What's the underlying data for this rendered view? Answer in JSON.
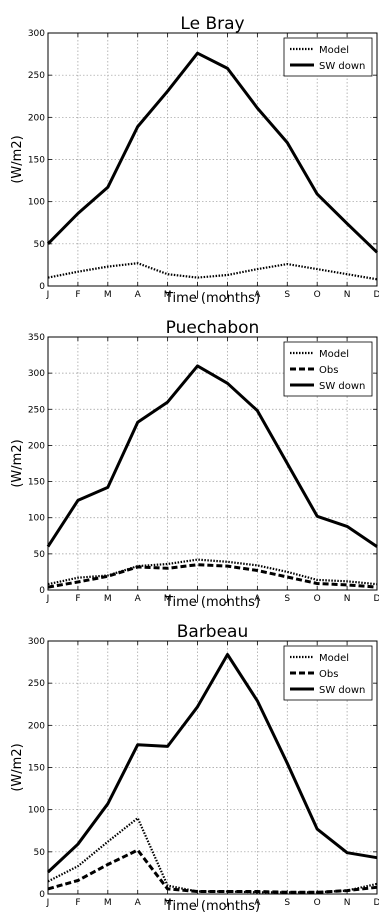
{
  "chart_data": [
    {
      "type": "line",
      "title": "Le Bray",
      "xlabel": "Time (months)",
      "ylabel": "(W/m2)",
      "categories": [
        "J",
        "F",
        "M",
        "A",
        "M",
        "J",
        "J",
        "A",
        "S",
        "O",
        "N",
        "D"
      ],
      "yticks": [
        "0",
        "50",
        "100",
        "150",
        "200",
        "250",
        "300"
      ],
      "ylim": [
        0,
        300
      ],
      "grid": true,
      "legend": "top-right",
      "series": [
        {
          "name": "Model",
          "style": "dotted",
          "values": [
            10,
            17,
            23,
            27,
            14,
            10,
            13,
            20,
            26,
            20,
            14,
            8
          ]
        },
        {
          "name": "SW down",
          "style": "solid",
          "values": [
            50,
            86,
            117,
            189,
            231,
            276,
            258,
            211,
            170,
            109,
            74,
            40
          ]
        }
      ]
    },
    {
      "type": "line",
      "title": "Puechabon",
      "xlabel": "Time (months)",
      "ylabel": "(W/m2)",
      "categories": [
        "J",
        "F",
        "M",
        "A",
        "M",
        "J",
        "J",
        "A",
        "S",
        "O",
        "N",
        "D"
      ],
      "yticks": [
        "0",
        "50",
        "100",
        "150",
        "200",
        "250",
        "300",
        "350"
      ],
      "ylim": [
        0,
        350
      ],
      "grid": true,
      "legend": "top-right",
      "series": [
        {
          "name": "Model",
          "style": "dotted",
          "values": [
            8,
            17,
            20,
            33,
            36,
            42,
            39,
            34,
            25,
            14,
            12,
            8
          ]
        },
        {
          "name": "Obs",
          "style": "dashed",
          "values": [
            4,
            11,
            19,
            32,
            30,
            35,
            33,
            27,
            18,
            9,
            7,
            4
          ]
        },
        {
          "name": "SW down",
          "style": "solid",
          "values": [
            60,
            124,
            142,
            232,
            260,
            310,
            286,
            248,
            175,
            102,
            88,
            60
          ]
        }
      ]
    },
    {
      "type": "line",
      "title": "Barbeau",
      "xlabel": "Time (months)",
      "ylabel": "(W/m2)",
      "categories": [
        "J",
        "F",
        "M",
        "A",
        "M",
        "J",
        "J",
        "A",
        "S",
        "O",
        "N",
        "D"
      ],
      "yticks": [
        "0",
        "50",
        "100",
        "150",
        "200",
        "250",
        "300"
      ],
      "ylim": [
        0,
        300
      ],
      "grid": true,
      "legend": "top-right",
      "series": [
        {
          "name": "Model",
          "style": "dotted",
          "values": [
            15,
            33,
            62,
            90,
            10,
            3,
            3,
            2,
            2,
            2,
            4,
            12
          ]
        },
        {
          "name": "Obs",
          "style": "dashed",
          "values": [
            6,
            16,
            35,
            52,
            6,
            3,
            3,
            3,
            2,
            2,
            4,
            8
          ]
        },
        {
          "name": "SW down",
          "style": "solid",
          "values": [
            26,
            59,
            107,
            177,
            175,
            222,
            284,
            229,
            155,
            77,
            49,
            43
          ]
        }
      ]
    }
  ]
}
